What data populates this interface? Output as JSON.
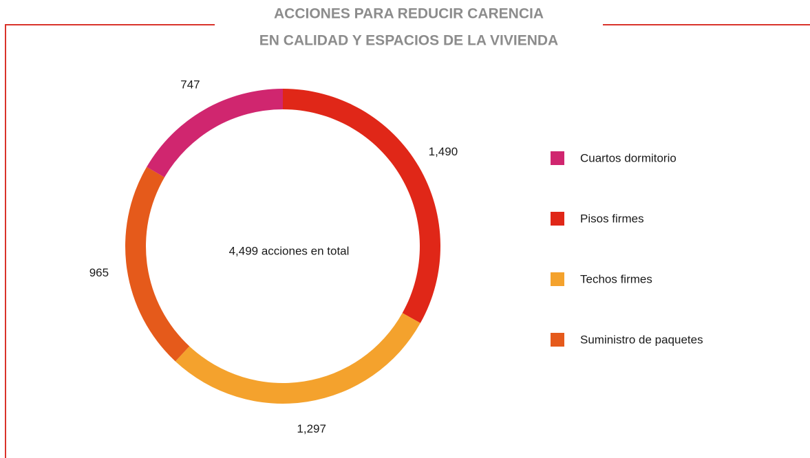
{
  "chart_data": {
    "type": "donut",
    "title_lines": [
      "ACCIONES PARA REDUCIR CARENCIA",
      "EN CALIDAD Y ESPACIOS DE LA VIVIENDA"
    ],
    "center_label": "4,499 acciones en total",
    "categories": [
      "Pisos firmes",
      "Techos firmes",
      "Suministro de paquetes",
      "Cuartos dormitorio"
    ],
    "values": [
      1490,
      1297,
      965,
      747
    ],
    "value_labels": [
      "1,490",
      "1,297",
      "965",
      "747"
    ],
    "colors": [
      "#e02718",
      "#f4a22d",
      "#e55a1b",
      "#d0266f"
    ],
    "legend_order": [
      3,
      0,
      1,
      2
    ]
  }
}
